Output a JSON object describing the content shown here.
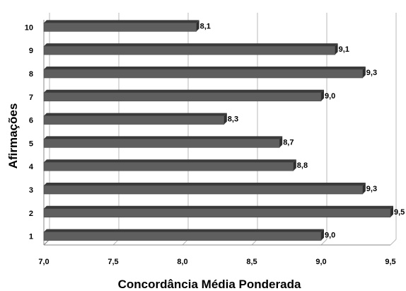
{
  "chart_data": {
    "type": "bar",
    "orientation": "horizontal",
    "xlabel": "Concordância Média Ponderada",
    "ylabel": "Afirmações",
    "xlim": [
      7.0,
      9.5
    ],
    "x_ticks": [
      "7,0",
      "7,5",
      "8,0",
      "8,5",
      "9,0",
      "9,5"
    ],
    "x_tick_values": [
      7.0,
      7.5,
      8.0,
      8.5,
      9.0,
      9.5
    ],
    "grid": "vertical",
    "categories": [
      "1",
      "2",
      "3",
      "4",
      "5",
      "6",
      "7",
      "8",
      "9",
      "10"
    ],
    "values": [
      9.0,
      9.5,
      9.3,
      8.8,
      8.7,
      8.3,
      9.0,
      9.3,
      9.1,
      8.1
    ],
    "value_labels": [
      "9,0",
      "9,5",
      "9,3",
      "8,8",
      "8,7",
      "8,3",
      "9,0",
      "9,3",
      "9,1",
      "8,1"
    ],
    "bar_color": "#5f5f5f",
    "bar_edge_color": "#2e2e2e"
  }
}
